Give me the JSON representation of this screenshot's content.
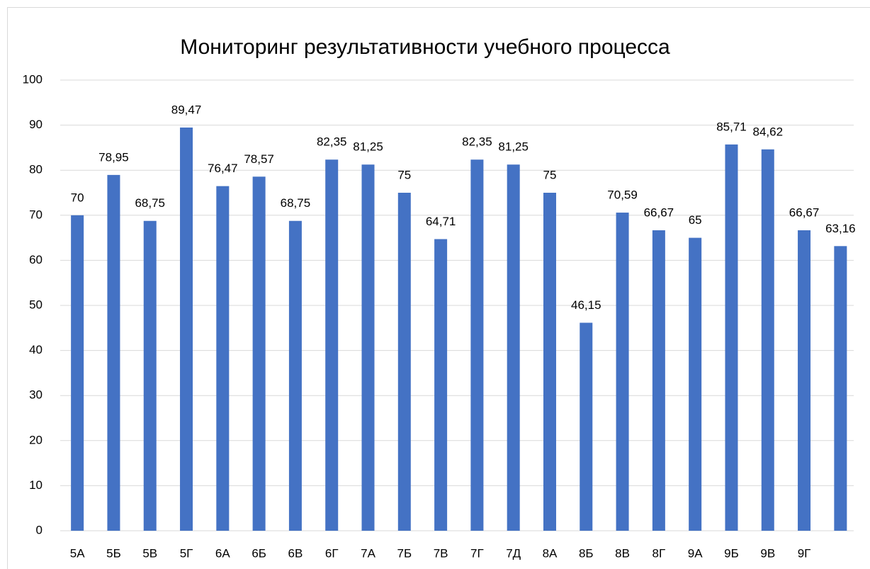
{
  "chart_data": {
    "type": "bar",
    "title": "Мониторинг результативности учебного процесса",
    "categories": [
      "5А",
      "5Б",
      "5В",
      "5Г",
      "6А",
      "6Б",
      "6В",
      "6Г",
      "7А",
      "7Б",
      "7В",
      "7Г",
      "7Д",
      "8А",
      "8Б",
      "8В",
      "8Г",
      "9А",
      "9Б",
      "9В",
      "9Г",
      null
    ],
    "values": [
      70,
      78.95,
      68.75,
      89.47,
      76.47,
      78.57,
      68.75,
      82.35,
      81.25,
      75,
      64.71,
      82.35,
      81.25,
      75,
      46.15,
      70.59,
      66.67,
      65,
      85.71,
      84.62,
      66.67,
      63.16
    ],
    "value_labels": [
      "70",
      "78,95",
      "68,75",
      "89,47",
      "76,47",
      "78,57",
      "68,75",
      "82,35",
      "81,25",
      "75",
      "64,71",
      "82,35",
      "81,25",
      "75",
      "46,15",
      "70,59",
      "66,67",
      "65",
      "85,71",
      "84,62",
      "66,67",
      "63,16"
    ],
    "color": "#4472c4",
    "ylim": [
      0,
      100
    ],
    "yticks": [
      0,
      10,
      20,
      30,
      40,
      50,
      60,
      70,
      80,
      90,
      100
    ],
    "grid": true
  }
}
